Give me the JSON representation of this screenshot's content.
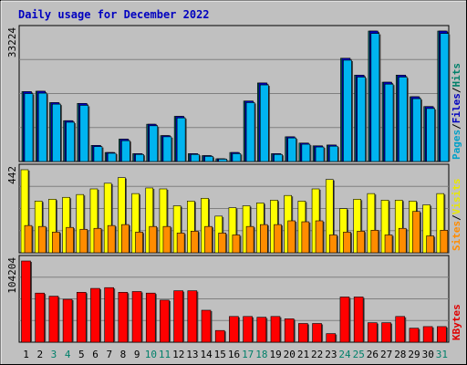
{
  "chart_data": {
    "type": "bar",
    "title": "Daily usage for December 2022",
    "days": [
      "1",
      "2",
      "3",
      "4",
      "5",
      "6",
      "7",
      "8",
      "9",
      "10",
      "11",
      "12",
      "13",
      "14",
      "15",
      "16",
      "17",
      "18",
      "19",
      "20",
      "21",
      "22",
      "23",
      "24",
      "25",
      "26",
      "27",
      "28",
      "29",
      "30",
      "31"
    ],
    "weekend_days": [
      "3",
      "4",
      "10",
      "11",
      "17",
      "18",
      "24",
      "25",
      "31"
    ],
    "panels": [
      {
        "id": "hits",
        "max_label": "33224",
        "ymax": 33224,
        "side_label": [
          "Pages",
          "/",
          "Files",
          "/",
          "Hits"
        ],
        "side_colors": [
          "#00a0c8",
          "#000000",
          "#0000c0",
          "#000000",
          "#00806a"
        ],
        "series": [
          {
            "name": "Hits",
            "color": "#006a6a",
            "values": [
              17800,
              17900,
              15000,
              10400,
              14800,
              4100,
              2300,
              5700,
              2000,
              9500,
              6600,
              11500,
              2000,
              1500,
              700,
              2300,
              15400,
              20000,
              2000,
              6300,
              4700,
              4000,
              4200,
              26300,
              22000,
              33224,
              20200,
              22000,
              16500,
              14000,
              33224
            ]
          },
          {
            "name": "Files",
            "color": "#0000c0",
            "values": [
              17800,
              17900,
              15000,
              10400,
              14800,
              4100,
              2300,
              5700,
              2000,
              9500,
              6600,
              11500,
              2000,
              1500,
              700,
              2300,
              15400,
              20000,
              2000,
              6300,
              4700,
              4000,
              4200,
              26300,
              22000,
              33224,
              20200,
              22000,
              16500,
              14000,
              33224
            ]
          },
          {
            "name": "Pages",
            "color": "#00b4f0",
            "values": [
              17300,
              17400,
              14600,
              10000,
              14300,
              3800,
              2100,
              5300,
              1800,
              9100,
              6300,
              11100,
              1800,
              1300,
              600,
              2000,
              15000,
              19500,
              1800,
              6000,
              4400,
              3700,
              3900,
              25800,
              21500,
              32600,
              19700,
              21500,
              16000,
              13500,
              32600
            ]
          }
        ]
      },
      {
        "id": "visits",
        "max_label": "442",
        "ymax": 442,
        "side_label": [
          "Sites",
          "/",
          "Visits"
        ],
        "side_colors": [
          "#ff8c00",
          "#000000",
          "#e8e800"
        ],
        "series": [
          {
            "name": "Visits",
            "color": "#ffff00",
            "values": [
              442,
              275,
              285,
              295,
              310,
              340,
              370,
              400,
              315,
              345,
              340,
              250,
              275,
              290,
              195,
              240,
              250,
              265,
              280,
              305,
              275,
              340,
              390,
              235,
              285,
              315,
              280,
              280,
              275,
              255,
              315
            ]
          },
          {
            "name": "Sites",
            "color": "#ff8c00",
            "values": [
              145,
              140,
              110,
              135,
              125,
              130,
              145,
              150,
              110,
              140,
              140,
              105,
              115,
              140,
              105,
              95,
              140,
              150,
              150,
              170,
              165,
              170,
              95,
              110,
              115,
              120,
              95,
              130,
              220,
              90,
              120
            ]
          }
        ]
      },
      {
        "id": "kbytes",
        "max_label": "104204",
        "ymax": 104204,
        "side_label": [
          "KBytes"
        ],
        "side_colors": [
          "#e00000"
        ],
        "series": [
          {
            "name": "KBytes",
            "color": "#ff0000",
            "values": [
              104204,
              63000,
              59000,
              55000,
              64000,
              69000,
              70000,
              64000,
              65000,
              63000,
              54000,
              66000,
              66000,
              41000,
              15000,
              33000,
              33000,
              32000,
              33000,
              30000,
              24000,
              24000,
              11000,
              58000,
              58000,
              25000,
              25000,
              33000,
              18000,
              20000,
              20000
            ]
          }
        ]
      }
    ]
  }
}
